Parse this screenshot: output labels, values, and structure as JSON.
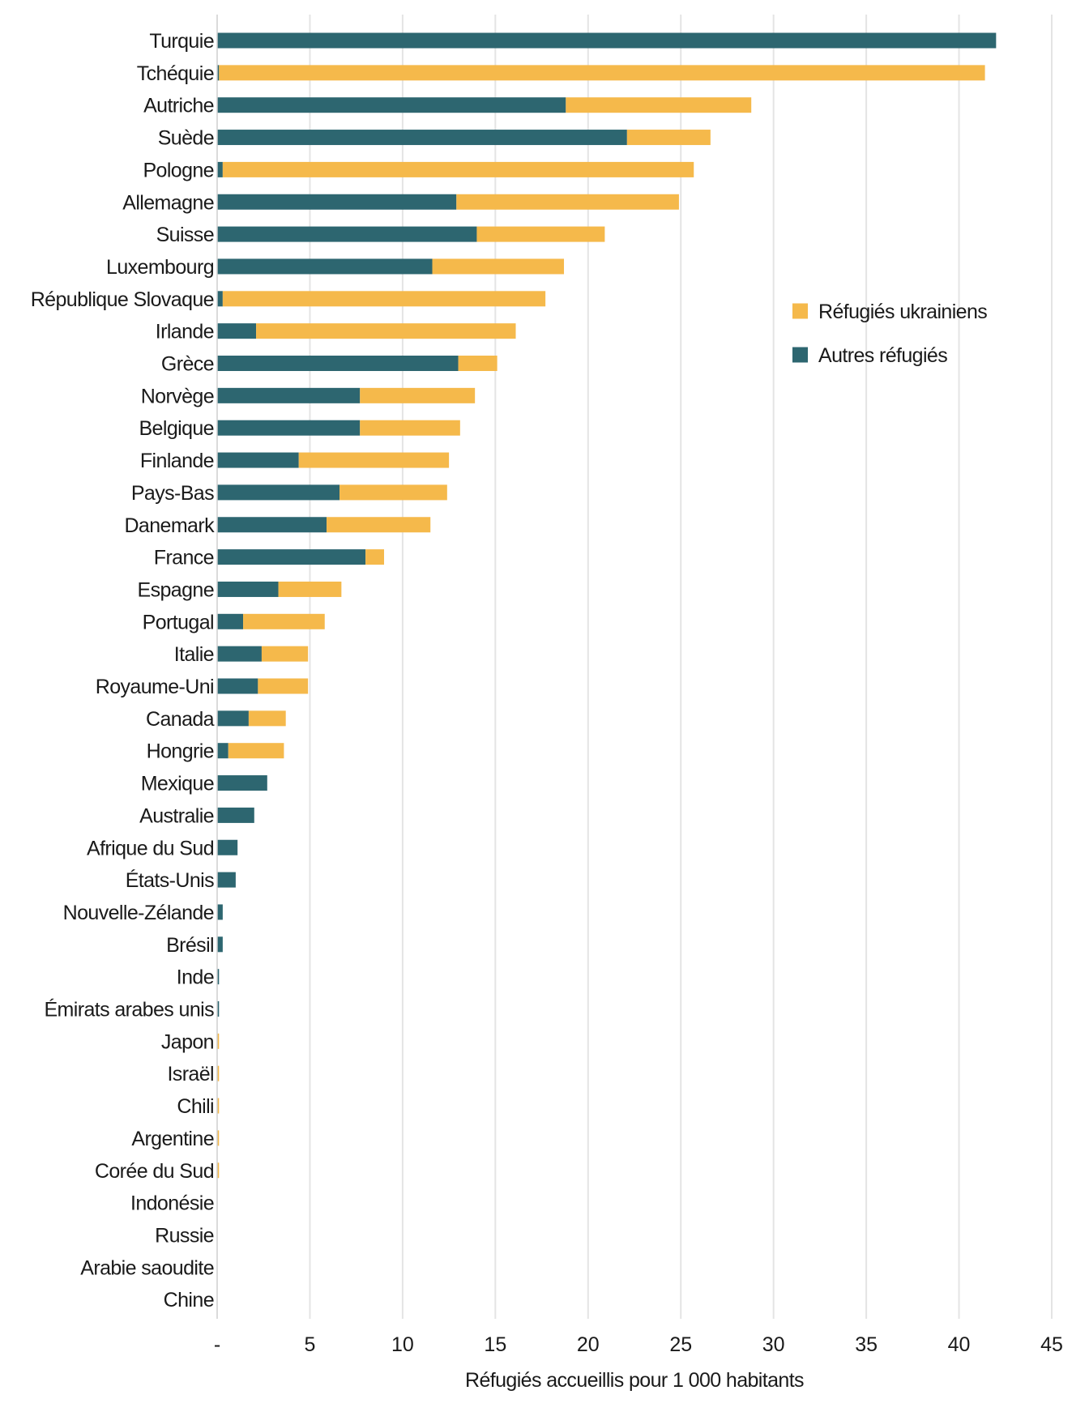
{
  "chart_data": {
    "type": "bar",
    "orientation": "horizontal",
    "stacked": true,
    "title": "",
    "xlabel": "Réfugiés accueillis pour 1 000 habitants",
    "ylabel": "",
    "xlim": [
      0,
      45
    ],
    "x_ticks": [
      0,
      5,
      10,
      15,
      20,
      25,
      30,
      35,
      40,
      45
    ],
    "x_tick_labels": [
      "-",
      "5",
      "10",
      "15",
      "20",
      "25",
      "30",
      "35",
      "40",
      "45"
    ],
    "grid": "vertical",
    "legend_position": "right",
    "categories": [
      "Turquie",
      "Tchéquie",
      "Autriche",
      "Suède",
      "Pologne",
      "Allemagne",
      "Suisse",
      "Luxembourg",
      "République Slovaque",
      "Irlande",
      "Grèce",
      "Norvège",
      "Belgique",
      "Finlande",
      "Pays-Bas",
      "Danemark",
      "France",
      "Espagne",
      "Portugal",
      "Italie",
      "Royaume-Uni",
      "Canada",
      "Hongrie",
      "Mexique",
      "Australie",
      "Afrique du Sud",
      "États-Unis",
      "Nouvelle-Zélande",
      "Brésil",
      "Inde",
      "Émirats arabes unis",
      "Japon",
      "Israël",
      "Chili",
      "Argentine",
      "Corée du Sud",
      "Indonésie",
      "Russie",
      "Arabie saoudite",
      "Chine"
    ],
    "series": [
      {
        "name": "Autres réfugiés",
        "color": "#2d6670",
        "values": [
          42.0,
          0.1,
          18.8,
          22.1,
          0.3,
          12.9,
          14.0,
          11.6,
          0.3,
          2.1,
          13.0,
          7.7,
          7.7,
          4.4,
          6.6,
          5.9,
          8.0,
          3.3,
          1.4,
          2.4,
          2.2,
          1.7,
          0.6,
          2.7,
          2.0,
          1.1,
          1.0,
          0.3,
          0.3,
          0.1,
          0.1,
          0.0,
          0.0,
          0.0,
          0.0,
          0.0,
          0.0,
          0.0,
          0.0,
          0.0
        ]
      },
      {
        "name": "Réfugiés ukrainiens",
        "color": "#f5b94b",
        "values": [
          0.0,
          41.3,
          10.0,
          4.5,
          25.4,
          12.0,
          6.9,
          7.1,
          17.4,
          14.0,
          2.1,
          6.2,
          5.4,
          8.1,
          5.8,
          5.6,
          1.0,
          3.4,
          4.4,
          2.5,
          2.7,
          2.0,
          3.0,
          0.0,
          0.0,
          0.0,
          0.0,
          0.0,
          0.0,
          0.0,
          0.0,
          0.1,
          0.1,
          0.1,
          0.1,
          0.1,
          0.0,
          0.0,
          0.0,
          0.0
        ]
      }
    ],
    "legend": [
      {
        "name": "Réfugiés ukrainiens",
        "color": "#f5b94b"
      },
      {
        "name": "Autres réfugiés",
        "color": "#2d6670"
      }
    ]
  }
}
